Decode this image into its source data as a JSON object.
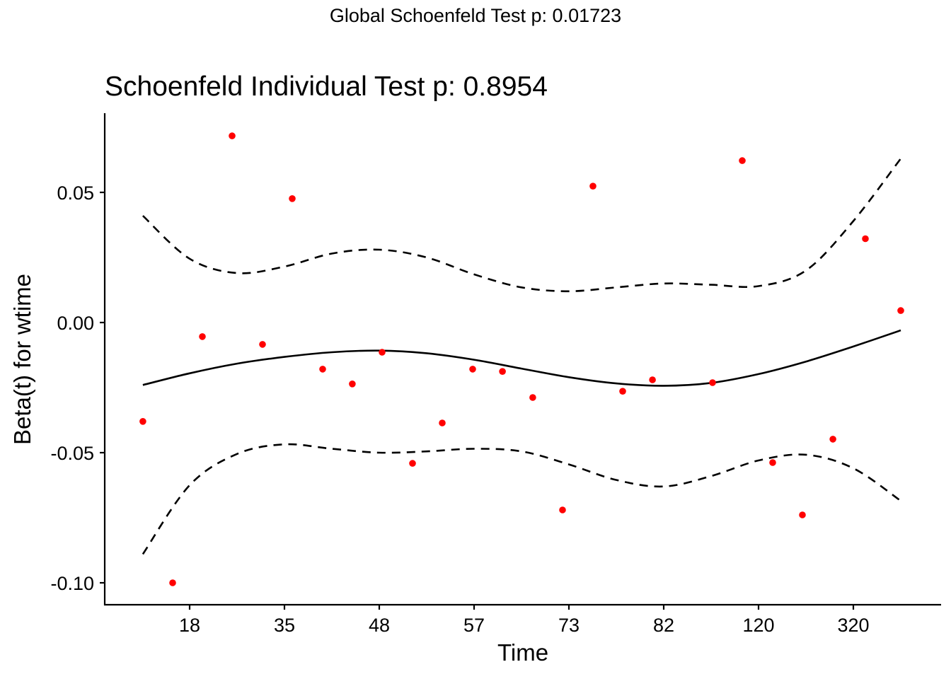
{
  "chart_data": {
    "type": "scatter",
    "suptitle": "Global Schoenfeld Test p: 0.01723",
    "title": "Schoenfeld Individual Test p: 0.8954",
    "xlabel": "Time",
    "ylabel": "Beta(t) for wtime",
    "x_scale": "transformed time (tick index units)",
    "xlim": [
      0.3,
      9.1
    ],
    "ylim": [
      -0.1085,
      0.0805
    ],
    "x_ticks": [
      {
        "pos": 1,
        "label": "18"
      },
      {
        "pos": 2,
        "label": "35"
      },
      {
        "pos": 3,
        "label": "48"
      },
      {
        "pos": 4,
        "label": "57"
      },
      {
        "pos": 5,
        "label": "73"
      },
      {
        "pos": 6,
        "label": "82"
      },
      {
        "pos": 7,
        "label": "120"
      },
      {
        "pos": 8,
        "label": "320"
      }
    ],
    "y_ticks": [
      {
        "value": 0.05,
        "label": "0.05"
      },
      {
        "value": 0.0,
        "label": "0.00"
      },
      {
        "value": -0.05,
        "label": "-0.05"
      },
      {
        "value": -0.1,
        "label": "-0.10"
      }
    ],
    "grid": false,
    "colors": {
      "points": "#ff0000",
      "lines": "#000000"
    },
    "series": [
      {
        "name": "residuals",
        "kind": "points",
        "x": [
          0.507,
          0.821,
          1.134,
          1.448,
          1.769,
          2.082,
          2.403,
          2.716,
          3.03,
          3.351,
          3.664,
          3.985,
          4.299,
          4.619,
          4.933,
          5.254,
          5.567,
          5.881,
          6.515,
          6.828,
          7.149,
          7.463,
          7.784,
          8.127,
          8.5
        ],
        "y": [
          -0.038,
          -0.1,
          -0.0054,
          0.0717,
          -0.0084,
          0.0476,
          -0.0179,
          -0.0236,
          -0.0114,
          -0.0541,
          -0.0386,
          -0.0179,
          -0.0188,
          -0.0288,
          -0.072,
          0.0524,
          -0.0264,
          -0.022,
          -0.0231,
          0.0622,
          -0.0538,
          -0.0739,
          -0.0448,
          0.0322,
          0.0046
        ]
      },
      {
        "name": "beta-fit",
        "kind": "line",
        "x": [
          0.507,
          1.0,
          1.5,
          2.0,
          2.5,
          3.0,
          3.5,
          4.0,
          4.5,
          5.0,
          5.5,
          6.0,
          6.5,
          7.0,
          7.5,
          8.0,
          8.5
        ],
        "y": [
          -0.024,
          -0.0195,
          -0.0158,
          -0.0132,
          -0.0114,
          -0.0108,
          -0.0118,
          -0.0143,
          -0.0177,
          -0.021,
          -0.0234,
          -0.0243,
          -0.0232,
          -0.0198,
          -0.015,
          -0.0092,
          -0.003
        ]
      },
      {
        "name": "upper-ci",
        "kind": "dashed",
        "x": [
          0.507,
          1.0,
          1.5,
          2.0,
          2.5,
          3.0,
          3.5,
          4.0,
          4.5,
          5.0,
          5.5,
          6.0,
          6.5,
          7.0,
          7.5,
          8.0,
          8.5
        ],
        "y": [
          0.041,
          0.0245,
          0.019,
          0.0215,
          0.0265,
          0.028,
          0.025,
          0.0185,
          0.0135,
          0.012,
          0.0135,
          0.015,
          0.0145,
          0.014,
          0.02,
          0.039,
          0.063
        ]
      },
      {
        "name": "lower-ci",
        "kind": "dashed",
        "x": [
          0.507,
          1.0,
          1.5,
          2.0,
          2.5,
          3.0,
          3.5,
          4.0,
          4.5,
          5.0,
          5.5,
          6.0,
          6.5,
          7.0,
          7.5,
          8.0,
          8.5
        ],
        "y": [
          -0.089,
          -0.0625,
          -0.0505,
          -0.0468,
          -0.0485,
          -0.05,
          -0.0495,
          -0.0485,
          -0.0495,
          -0.0545,
          -0.0605,
          -0.063,
          -0.059,
          -0.053,
          -0.0508,
          -0.056,
          -0.0685
        ]
      }
    ]
  }
}
